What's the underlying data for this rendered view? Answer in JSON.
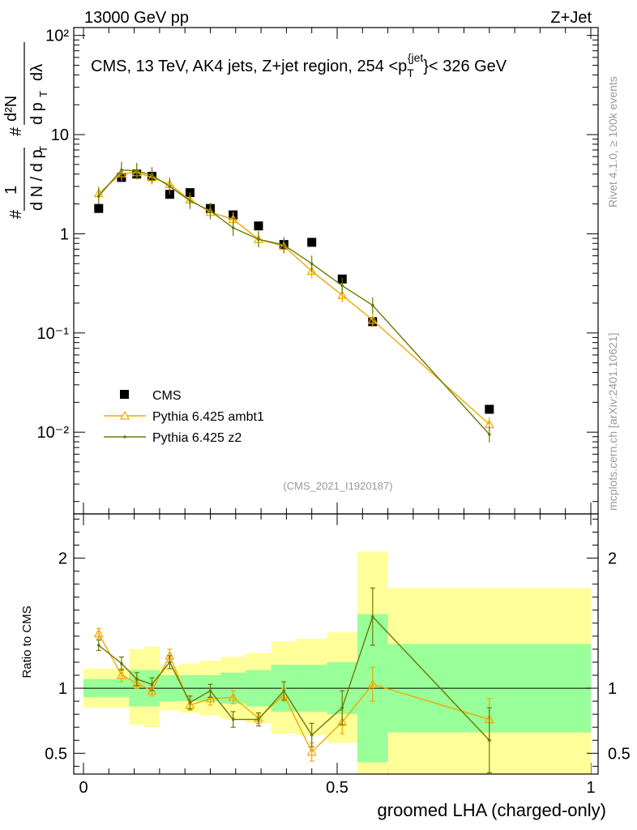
{
  "header": {
    "left": "13000 GeV pp",
    "right": "Z+Jet"
  },
  "side": {
    "rivet": "Rivet 4.1.0, ≥ 100k events",
    "mcplots": "mcplots.cern.ch [arXiv:2401.10621]"
  },
  "colors": {
    "data": "#000000",
    "ambt1": "#f0a800",
    "z2": "#6b7a00",
    "band_outer": "#ffff99",
    "band_inner": "#99ff99"
  },
  "chart_data": [
    {
      "type": "scatter",
      "name": "main",
      "title": "CMS, 13 TeV, AK4 jets, Z+jet region, 254 <p_T^{jet}< 326 GeV",
      "ylabel": "1/dN/dpT  d²N/dpT dλ",
      "yscale": "log",
      "ylim": [
        0.0015,
        120
      ],
      "xlim": [
        -0.02,
        1.0
      ],
      "yticks": [
        {
          "value": 0.01,
          "label": "10⁻²"
        },
        {
          "value": 0.1,
          "label": "10⁻¹"
        },
        {
          "value": 1,
          "label": "1"
        },
        {
          "value": 10,
          "label": "10"
        },
        {
          "value": 100,
          "label": "10²"
        }
      ],
      "watermark": "(CMS_2021_I1920187)",
      "legend": {
        "position": "bottom-left",
        "entries": [
          "CMS",
          "Pythia 6.425 ambt1",
          "Pythia 6.425 z2"
        ]
      },
      "x": [
        0.03,
        0.075,
        0.105,
        0.135,
        0.17,
        0.21,
        0.25,
        0.295,
        0.345,
        0.395,
        0.45,
        0.51,
        0.57,
        0.8
      ],
      "series": [
        {
          "name": "CMS",
          "style": "square",
          "values": [
            1.8,
            3.7,
            4.0,
            3.8,
            2.5,
            2.6,
            1.8,
            1.55,
            1.2,
            0.78,
            0.82,
            0.35,
            0.13,
            0.017
          ]
        },
        {
          "name": "Pythia 6.425 ambt1",
          "style": "triangle",
          "values": [
            2.55,
            4.05,
            4.15,
            3.7,
            3.15,
            2.2,
            1.65,
            1.4,
            0.88,
            0.75,
            0.42,
            0.24,
            0.135,
            0.012
          ]
        },
        {
          "name": "Pythia 6.425 z2",
          "style": "dot",
          "values": [
            2.4,
            4.4,
            4.3,
            3.9,
            3.0,
            2.15,
            1.7,
            1.15,
            0.88,
            0.77,
            0.5,
            0.3,
            0.19,
            0.0095
          ]
        }
      ]
    },
    {
      "type": "scatter",
      "name": "ratio",
      "ylabel": "Ratio to CMS",
      "ylim": [
        0.34,
        2.34
      ],
      "yticks": [
        {
          "value": 0.5,
          "label": "0.5"
        },
        {
          "value": 1,
          "label": "1"
        },
        {
          "value": 2,
          "label": "2"
        }
      ],
      "xticks": [
        {
          "value": 0,
          "label": "0"
        },
        {
          "value": 0.5,
          "label": "0.5"
        },
        {
          "value": 1,
          "label": "1"
        }
      ],
      "xlabel": "groomed LHA (charged-only)",
      "bands": [
        {
          "x0": 0.0,
          "x1": 0.06,
          "outer": [
            0.85,
            1.15
          ],
          "inner": [
            0.93,
            1.07
          ]
        },
        {
          "x0": 0.06,
          "x1": 0.09,
          "outer": [
            0.85,
            1.15
          ],
          "inner": [
            0.93,
            1.07
          ]
        },
        {
          "x0": 0.09,
          "x1": 0.12,
          "outer": [
            0.72,
            1.3
          ],
          "inner": [
            0.86,
            1.14
          ]
        },
        {
          "x0": 0.12,
          "x1": 0.15,
          "outer": [
            0.7,
            1.32
          ],
          "inner": [
            0.86,
            1.14
          ]
        },
        {
          "x0": 0.15,
          "x1": 0.19,
          "outer": [
            0.83,
            1.17
          ],
          "inner": [
            0.9,
            1.1
          ]
        },
        {
          "x0": 0.19,
          "x1": 0.23,
          "outer": [
            0.81,
            1.19
          ],
          "inner": [
            0.9,
            1.1
          ]
        },
        {
          "x0": 0.23,
          "x1": 0.27,
          "outer": [
            0.79,
            1.21
          ],
          "inner": [
            0.9,
            1.1
          ]
        },
        {
          "x0": 0.27,
          "x1": 0.32,
          "outer": [
            0.76,
            1.24
          ],
          "inner": [
            0.88,
            1.12
          ]
        },
        {
          "x0": 0.32,
          "x1": 0.37,
          "outer": [
            0.73,
            1.27
          ],
          "inner": [
            0.86,
            1.14
          ]
        },
        {
          "x0": 0.37,
          "x1": 0.42,
          "outer": [
            0.65,
            1.36
          ],
          "inner": [
            0.82,
            1.18
          ]
        },
        {
          "x0": 0.42,
          "x1": 0.48,
          "outer": [
            0.64,
            1.38
          ],
          "inner": [
            0.82,
            1.18
          ]
        },
        {
          "x0": 0.48,
          "x1": 0.54,
          "outer": [
            0.58,
            1.43
          ],
          "inner": [
            0.8,
            1.2
          ]
        },
        {
          "x0": 0.54,
          "x1": 0.6,
          "outer": [
            0.34,
            2.05
          ],
          "inner": [
            0.43,
            1.57
          ]
        },
        {
          "x0": 0.6,
          "x1": 1.0,
          "outer": [
            0.34,
            1.77
          ],
          "inner": [
            0.66,
            1.34
          ]
        }
      ],
      "series": [
        {
          "name": "Pythia 6.425 ambt1",
          "style": "triangle",
          "values": [
            1.42,
            1.1,
            1.04,
            0.98,
            1.25,
            0.87,
            0.92,
            0.93,
            0.77,
            0.95,
            0.51,
            0.74,
            1.03,
            0.76
          ],
          "err": [
            0.04,
            0.05,
            0.04,
            0.04,
            0.05,
            0.04,
            0.05,
            0.05,
            0.04,
            0.05,
            0.07,
            0.09,
            0.13,
            0.16
          ]
        },
        {
          "name": "Pythia 6.425 z2",
          "style": "dot",
          "values": [
            1.33,
            1.19,
            1.07,
            1.03,
            1.2,
            0.89,
            0.98,
            0.76,
            0.76,
            0.98,
            0.64,
            0.85,
            1.55,
            0.6
          ],
          "err": [
            0.04,
            0.05,
            0.05,
            0.05,
            0.05,
            0.05,
            0.05,
            0.06,
            0.05,
            0.07,
            0.09,
            0.13,
            0.22,
            0.25
          ]
        }
      ]
    }
  ]
}
